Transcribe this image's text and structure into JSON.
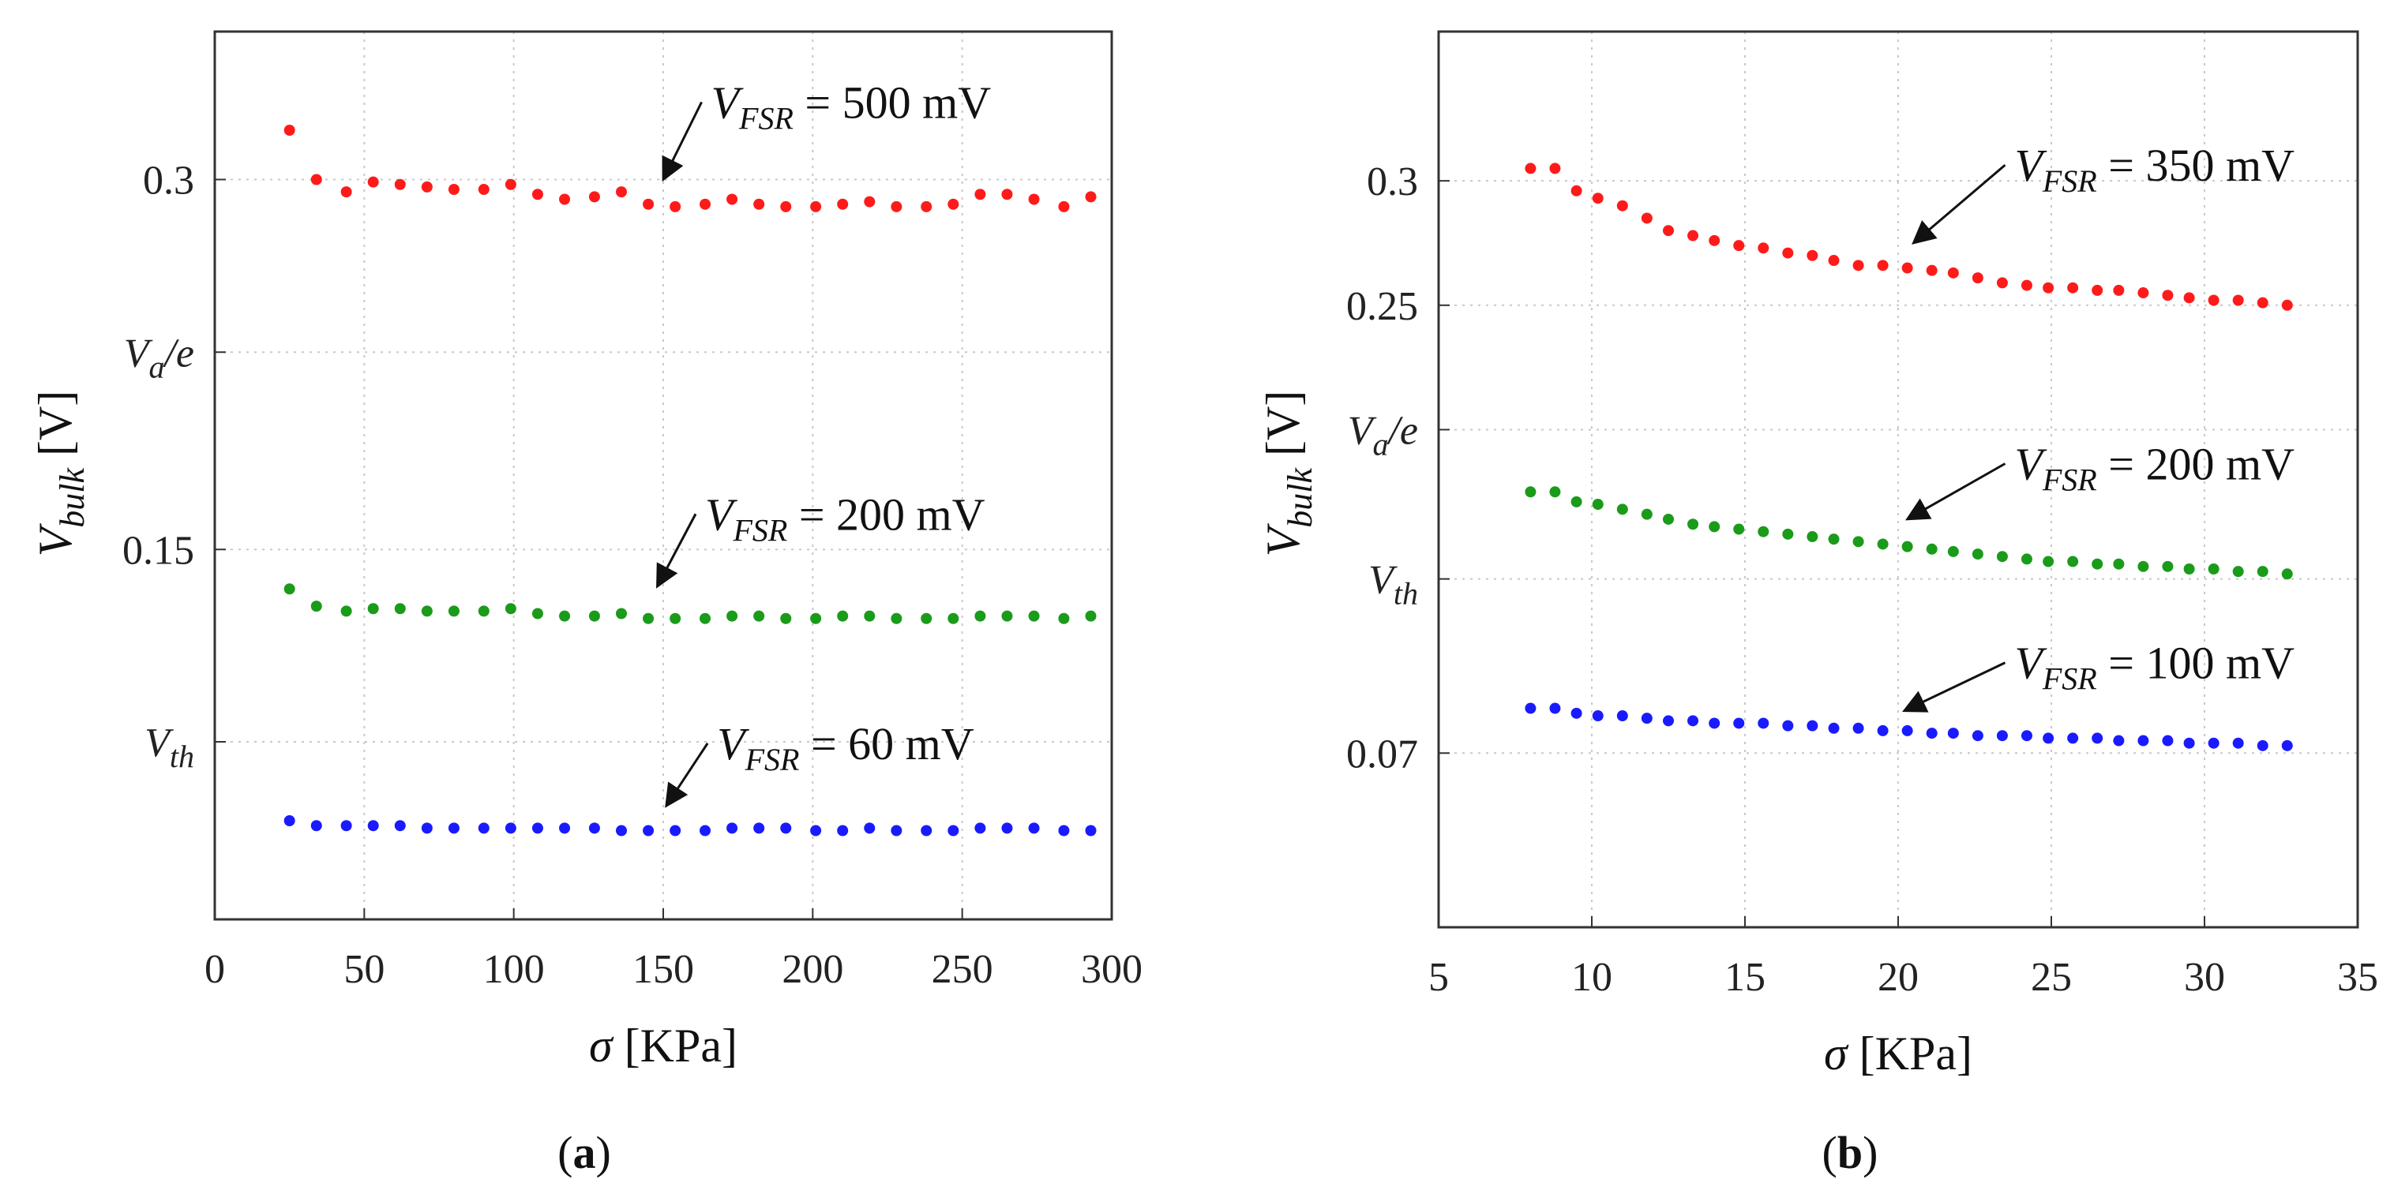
{
  "chart_data": [
    {
      "type": "scatter",
      "panel_label": "a",
      "xlabel": "σ [KPa]",
      "ylabel": {
        "main": "V",
        "subscript": "bulk",
        "unit": " [V]"
      },
      "xlim": [
        0,
        300
      ],
      "ylim": [
        0,
        0.36
      ],
      "xticks": [
        0,
        50,
        100,
        150,
        200,
        250,
        300
      ],
      "yticks": [
        {
          "value": 0.3,
          "label": "0.3"
        },
        {
          "value": 0.23,
          "label": "V_a/e"
        },
        {
          "value": 0.15,
          "label": "0.15"
        },
        {
          "value": 0.072,
          "label": "V_th"
        }
      ],
      "x": [
        25,
        34,
        44,
        53,
        62,
        71,
        80,
        90,
        99,
        108,
        117,
        127,
        136,
        145,
        154,
        164,
        173,
        182,
        191,
        201,
        210,
        219,
        228,
        238,
        247,
        256,
        265,
        274,
        284,
        293
      ],
      "series": [
        {
          "name": "V_FSR = 500 mV",
          "color": "#ff1a1a",
          "values": [
            0.32,
            0.3,
            0.295,
            0.299,
            0.298,
            0.297,
            0.296,
            0.296,
            0.298,
            0.294,
            0.292,
            0.293,
            0.295,
            0.29,
            0.289,
            0.29,
            0.292,
            0.29,
            0.289,
            0.289,
            0.29,
            0.291,
            0.289,
            0.289,
            0.29,
            0.294,
            0.294,
            0.292,
            0.289,
            0.293
          ]
        },
        {
          "name": "V_FSR = 200 mV",
          "color": "#1a9b1a",
          "values": [
            0.134,
            0.127,
            0.125,
            0.126,
            0.126,
            0.125,
            0.125,
            0.125,
            0.126,
            0.124,
            0.123,
            0.123,
            0.124,
            0.122,
            0.122,
            0.122,
            0.123,
            0.123,
            0.122,
            0.122,
            0.123,
            0.123,
            0.122,
            0.122,
            0.122,
            0.123,
            0.123,
            0.123,
            0.122,
            0.123
          ]
        },
        {
          "name": "V_FSR = 60 mV",
          "color": "#1a1aff",
          "values": [
            0.04,
            0.038,
            0.038,
            0.038,
            0.038,
            0.037,
            0.037,
            0.037,
            0.037,
            0.037,
            0.037,
            0.037,
            0.036,
            0.036,
            0.036,
            0.036,
            0.037,
            0.037,
            0.037,
            0.036,
            0.036,
            0.037,
            0.036,
            0.036,
            0.036,
            0.037,
            0.037,
            0.037,
            0.036,
            0.036
          ]
        }
      ],
      "annotations": [
        {
          "main": "V",
          "subscript": "FSR",
          "value": " = 500 mV",
          "tx": 166,
          "ty": 0.325,
          "ax": 150,
          "ay": 0.3
        },
        {
          "main": "V",
          "subscript": "FSR",
          "value": " = 200 mV",
          "tx": 164,
          "ty": 0.158,
          "ax": 148,
          "ay": 0.135
        },
        {
          "main": "V",
          "subscript": "FSR",
          "value": " = 60 mV",
          "tx": 168,
          "ty": 0.065,
          "ax": 151,
          "ay": 0.046
        }
      ]
    },
    {
      "type": "scatter",
      "panel_label": "b",
      "xlabel": "σ [KPa]",
      "ylabel": {
        "main": "V",
        "subscript": "bulk",
        "unit": " [V]"
      },
      "xlim": [
        5,
        35
      ],
      "ylim": [
        0,
        0.36
      ],
      "xticks": [
        5,
        10,
        15,
        20,
        25,
        30,
        35
      ],
      "yticks": [
        {
          "value": 0.3,
          "label": "0.3"
        },
        {
          "value": 0.25,
          "label": "0.25"
        },
        {
          "value": 0.2,
          "label": "V_a/e"
        },
        {
          "value": 0.14,
          "label": "V_th"
        },
        {
          "value": 0.07,
          "label": "0.07"
        }
      ],
      "x": [
        8,
        8.8,
        9.5,
        10.2,
        11,
        11.8,
        12.5,
        13.3,
        14,
        14.8,
        15.6,
        16.4,
        17.2,
        17.9,
        18.7,
        19.5,
        20.3,
        21.1,
        21.8,
        22.6,
        23.4,
        24.2,
        24.9,
        25.7,
        26.5,
        27.2,
        28,
        28.8,
        29.5,
        30.3,
        31.1,
        31.9,
        32.7
      ],
      "series": [
        {
          "name": "V_FSR = 350 mV",
          "color": "#ff1a1a",
          "values": [
            0.305,
            0.305,
            0.296,
            0.293,
            0.29,
            0.285,
            0.28,
            0.278,
            0.276,
            0.274,
            0.273,
            0.271,
            0.27,
            0.268,
            0.266,
            0.266,
            0.265,
            0.264,
            0.263,
            0.261,
            0.259,
            0.258,
            0.257,
            0.257,
            0.256,
            0.256,
            0.255,
            0.254,
            0.253,
            0.252,
            0.252,
            0.251,
            0.25
          ]
        },
        {
          "name": "V_FSR = 200 mV",
          "color": "#1a9b1a",
          "values": [
            0.175,
            0.175,
            0.171,
            0.17,
            0.168,
            0.166,
            0.164,
            0.162,
            0.161,
            0.16,
            0.159,
            0.158,
            0.157,
            0.156,
            0.155,
            0.154,
            0.153,
            0.152,
            0.151,
            0.15,
            0.149,
            0.148,
            0.147,
            0.147,
            0.146,
            0.146,
            0.145,
            0.145,
            0.144,
            0.144,
            0.143,
            0.143,
            0.142
          ]
        },
        {
          "name": "V_FSR = 100 mV",
          "color": "#1a1aff",
          "values": [
            0.088,
            0.088,
            0.086,
            0.085,
            0.085,
            0.084,
            0.083,
            0.083,
            0.082,
            0.082,
            0.082,
            0.081,
            0.081,
            0.08,
            0.08,
            0.079,
            0.079,
            0.078,
            0.078,
            0.077,
            0.077,
            0.077,
            0.076,
            0.076,
            0.076,
            0.075,
            0.075,
            0.075,
            0.074,
            0.074,
            0.074,
            0.073,
            0.073
          ]
        }
      ],
      "annotations": [
        {
          "main": "V",
          "subscript": "FSR",
          "value": " = 350 mV",
          "tx": 23.8,
          "ty": 0.3,
          "ax": 20.5,
          "ay": 0.275
        },
        {
          "main": "V",
          "subscript": "FSR",
          "value": " = 200 mV",
          "tx": 23.8,
          "ty": 0.18,
          "ax": 20.3,
          "ay": 0.164
        },
        {
          "main": "V",
          "subscript": "FSR",
          "value": " = 100 mV",
          "tx": 23.8,
          "ty": 0.1,
          "ax": 20.2,
          "ay": 0.087
        }
      ]
    }
  ]
}
